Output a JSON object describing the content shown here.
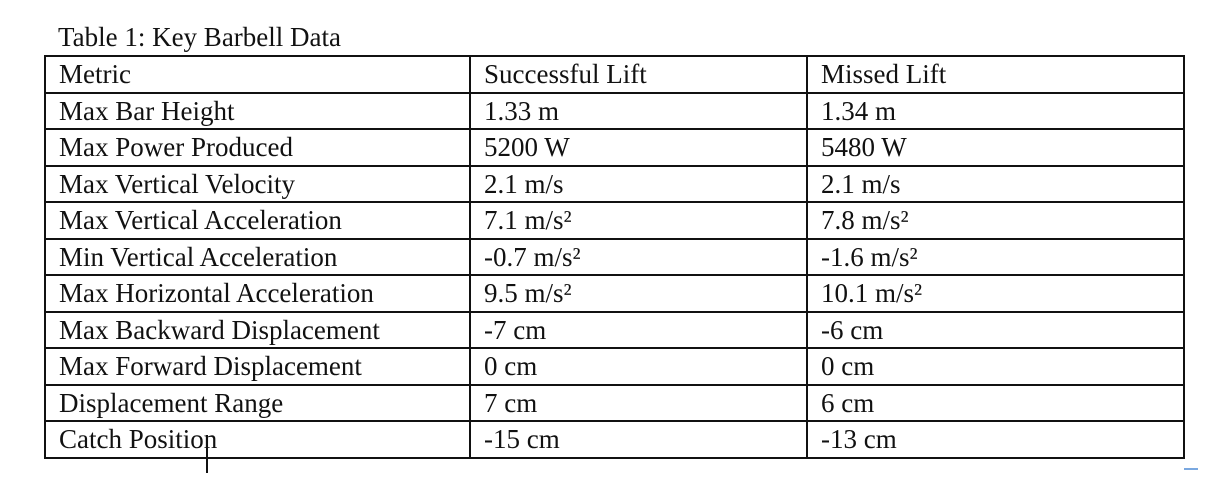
{
  "caption": "Table 1: Key Barbell Data",
  "table": {
    "header": [
      "Metric",
      "Successful Lift",
      "Missed Lift"
    ],
    "rows": [
      [
        "Max Bar Height",
        "1.33 m",
        "1.34 m"
      ],
      [
        "Max Power Produced",
        "5200 W",
        "5480 W"
      ],
      [
        "Max Vertical Velocity",
        "2.1 m/s",
        "2.1 m/s"
      ],
      [
        "Max Vertical Acceleration",
        "7.1 m/s²",
        "7.8 m/s²"
      ],
      [
        "Min Vertical Acceleration",
        "-0.7 m/s²",
        "-1.6 m/s²"
      ],
      [
        "Max Horizontal Acceleration",
        "9.5 m/s²",
        "10.1 m/s²"
      ],
      [
        "Max Backward Displacement",
        "-7 cm",
        "-6 cm"
      ],
      [
        "Max Forward Displacement",
        "0 cm",
        "0 cm"
      ],
      [
        "Displacement Range",
        "7 cm",
        "6 cm"
      ],
      [
        "Catch Position",
        "-15 cm",
        "-13 cm"
      ]
    ]
  }
}
